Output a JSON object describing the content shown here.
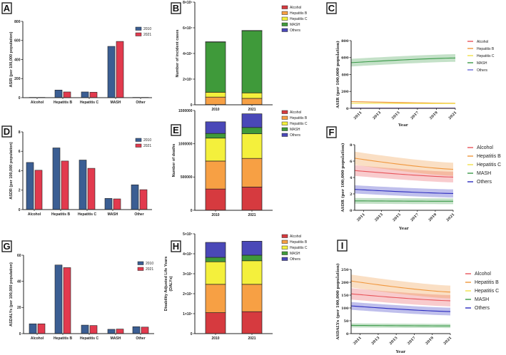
{
  "chart_data": [
    {
      "panel": "A",
      "type": "bar",
      "ylabel": "ASIR (per 100,000 population)",
      "ylim": [
        0,
        800
      ],
      "yticks": [
        "0",
        "200",
        "400",
        "600",
        "800"
      ],
      "categories": [
        "Alcohol",
        "Hepatitis B",
        "Hepatitis C",
        "MASH",
        "Other"
      ],
      "series": [
        {
          "name": "2010",
          "color": "#3b5e93",
          "values": [
            3,
            80,
            60,
            538,
            3
          ]
        },
        {
          "name": "2021",
          "color": "#e23a4e",
          "values": [
            3,
            60,
            57,
            590,
            3
          ]
        }
      ]
    },
    {
      "panel": "B",
      "type": "bar",
      "stacked": true,
      "ylabel": "Number of incident cases",
      "ylim": [
        0,
        80000000
      ],
      "yticks": [
        "0",
        "2×10⁷",
        "4×10⁷",
        "6×10⁷",
        "8×10⁷"
      ],
      "categories": [
        "2010",
        "2021"
      ],
      "series": [
        {
          "name": "Alcohol",
          "color": "#d63a3f",
          "values": [
            200000,
            200000
          ]
        },
        {
          "name": "Hepatitis B",
          "color": "#f7a044",
          "values": [
            5800000,
            4800000
          ]
        },
        {
          "name": "Hepatitis C",
          "color": "#f4f03c",
          "values": [
            3800000,
            4300000
          ]
        },
        {
          "name": "MASH",
          "color": "#3f9a3a",
          "values": [
            39200000,
            48500000
          ]
        },
        {
          "name": "Others",
          "color": "#4a48b8",
          "values": [
            100000,
            100000
          ]
        }
      ]
    },
    {
      "panel": "C",
      "type": "line",
      "ylabel": "ASIR (per 100,000 population)",
      "xlabel": "Year",
      "ylim": [
        0,
        800
      ],
      "yticks": [
        "0",
        "200",
        "400",
        "600",
        "800"
      ],
      "xlim": [
        2010,
        2021
      ],
      "xticks": [
        "2011",
        "2013",
        "2015",
        "2017",
        "2019",
        "2021"
      ],
      "series": [
        {
          "name": "Alcohol",
          "color": "#e8545a",
          "start": 3,
          "end": 3,
          "band": 2
        },
        {
          "name": "Hepatitis B",
          "color": "#f0963c",
          "start": 80,
          "end": 60,
          "band": 6
        },
        {
          "name": "Hepatitis C",
          "color": "#f3e14a",
          "start": 60,
          "end": 57,
          "band": 5
        },
        {
          "name": "MASH",
          "color": "#3a9a48",
          "start": 540,
          "end": 595,
          "band": 45
        },
        {
          "name": "Others",
          "color": "#6b6bd8",
          "start": 3,
          "end": 3,
          "band": 2
        }
      ]
    },
    {
      "panel": "D",
      "type": "bar",
      "ylabel": "ASDR (per 100,000 population)",
      "ylim": [
        0,
        8
      ],
      "yticks": [
        "0",
        "2",
        "4",
        "6",
        "8"
      ],
      "categories": [
        "Alcohol",
        "Hepatitis B",
        "Hepatitis C",
        "MASH",
        "Other"
      ],
      "series": [
        {
          "name": "2010",
          "color": "#3b5e93",
          "values": [
            4.85,
            6.35,
            5.1,
            1.15,
            2.55
          ]
        },
        {
          "name": "2021",
          "color": "#e23a4e",
          "values": [
            4.05,
            5.0,
            4.25,
            1.1,
            2.05
          ]
        }
      ]
    },
    {
      "panel": "E",
      "type": "bar",
      "stacked": true,
      "ylabel": "Number of deaths",
      "ylim": [
        0,
        1500000
      ],
      "yticks": [
        "0",
        "500000",
        "1000000",
        "1500000"
      ],
      "categories": [
        "2010",
        "2021"
      ],
      "series": [
        {
          "name": "Alcohol",
          "color": "#d63a3f",
          "values": [
            320000,
            350000
          ]
        },
        {
          "name": "Hepatitis B",
          "color": "#f7a044",
          "values": [
            420000,
            430000
          ]
        },
        {
          "name": "Hepatitis C",
          "color": "#f4f03c",
          "values": [
            345000,
            370000
          ]
        },
        {
          "name": "MASH",
          "color": "#3f9a3a",
          "values": [
            70000,
            95000
          ]
        },
        {
          "name": "Others",
          "color": "#4a48b8",
          "values": [
            175000,
            205000
          ]
        }
      ]
    },
    {
      "panel": "F",
      "type": "line",
      "ylabel": "ASDR (per 100,000 population)",
      "xlabel": "Year",
      "ylim": [
        0,
        8
      ],
      "yticks": [
        "0",
        "2",
        "4",
        "6",
        "8"
      ],
      "xlim": [
        2010,
        2021
      ],
      "xticks": [
        "2011",
        "2013",
        "2015",
        "2017",
        "2019",
        "2021"
      ],
      "series": [
        {
          "name": "Alcohol",
          "color": "#e8545a",
          "start": 4.85,
          "end": 4.05,
          "band": 0.65
        },
        {
          "name": "Hepatitis B",
          "color": "#f0963c",
          "start": 6.35,
          "end": 5.0,
          "band": 0.8
        },
        {
          "name": "Hepatitis C",
          "color": "#f3e14a",
          "start": null,
          "end": null,
          "band": 0
        },
        {
          "name": "MASH",
          "color": "#3a9a48",
          "start": 1.15,
          "end": 1.1,
          "band": 0.35
        },
        {
          "name": "Others",
          "color": "#2b2bbf",
          "start": 2.55,
          "end": 2.05,
          "band": 0.5
        }
      ]
    },
    {
      "panel": "G",
      "type": "bar",
      "ylabel": "ASDALYs (per 100,000 population)",
      "ylim": [
        0,
        60
      ],
      "yticks": [
        "0",
        "20",
        "40",
        "60"
      ],
      "categories": [
        "Alcohol",
        "Hepatitis B",
        "Hepatitis C",
        "MASH",
        "Other"
      ],
      "series": [
        {
          "name": "2010",
          "color": "#3b5e93",
          "values": [
            7.5,
            52.5,
            6.5,
            3.3,
            5.3
          ]
        },
        {
          "name": "2021",
          "color": "#e23a4e",
          "values": [
            7.5,
            50.5,
            6.2,
            3.5,
            5.0
          ]
        }
      ]
    },
    {
      "panel": "H",
      "type": "bar",
      "stacked": true,
      "ylabel": "Disability Adjusted Life Years",
      "ylabel2": "(DALYs)",
      "ylim": [
        0,
        50000000
      ],
      "yticks": [
        "0",
        "1×10⁷",
        "2×10⁷",
        "3×10⁷",
        "4×10⁷",
        "5×10⁷"
      ],
      "categories": [
        "2010",
        "2021"
      ],
      "series": [
        {
          "name": "Alcohol",
          "color": "#d63a3f",
          "values": [
            10500000,
            11000000
          ]
        },
        {
          "name": "Hepatitis B",
          "color": "#f7a044",
          "values": [
            14200000,
            13700000
          ]
        },
        {
          "name": "Hepatitis C",
          "color": "#f4f03c",
          "values": [
            11300000,
            11800000
          ]
        },
        {
          "name": "MASH",
          "color": "#3f9a3a",
          "values": [
            2200000,
            2800000
          ]
        },
        {
          "name": "Others",
          "color": "#4a48b8",
          "values": [
            7500000,
            7000000
          ]
        }
      ]
    },
    {
      "panel": "I",
      "type": "line",
      "ylabel": "ASDALYs (per 100,000 population)",
      "xlabel": "Year",
      "ylim": [
        0,
        250
      ],
      "yticks": [
        "0",
        "50",
        "100",
        "150",
        "200",
        "250"
      ],
      "xlim": [
        2010,
        2021
      ],
      "xticks": [
        "2011",
        "2013",
        "2015",
        "2017",
        "2019",
        "2021"
      ],
      "series": [
        {
          "name": "Alcohol",
          "color": "#e8545a",
          "start": 155,
          "end": 128,
          "band": 22
        },
        {
          "name": "Hepatitis B",
          "color": "#f0963c",
          "start": 205,
          "end": 162,
          "band": 25
        },
        {
          "name": "Hepatitis C",
          "color": "#f3e14a",
          "start": null,
          "end": null,
          "band": 0
        },
        {
          "name": "MASH",
          "color": "#3a9a48",
          "start": 32,
          "end": 30,
          "band": 8
        },
        {
          "name": "Others",
          "color": "#2b2bbf",
          "start": 108,
          "end": 86,
          "band": 15
        }
      ]
    }
  ]
}
